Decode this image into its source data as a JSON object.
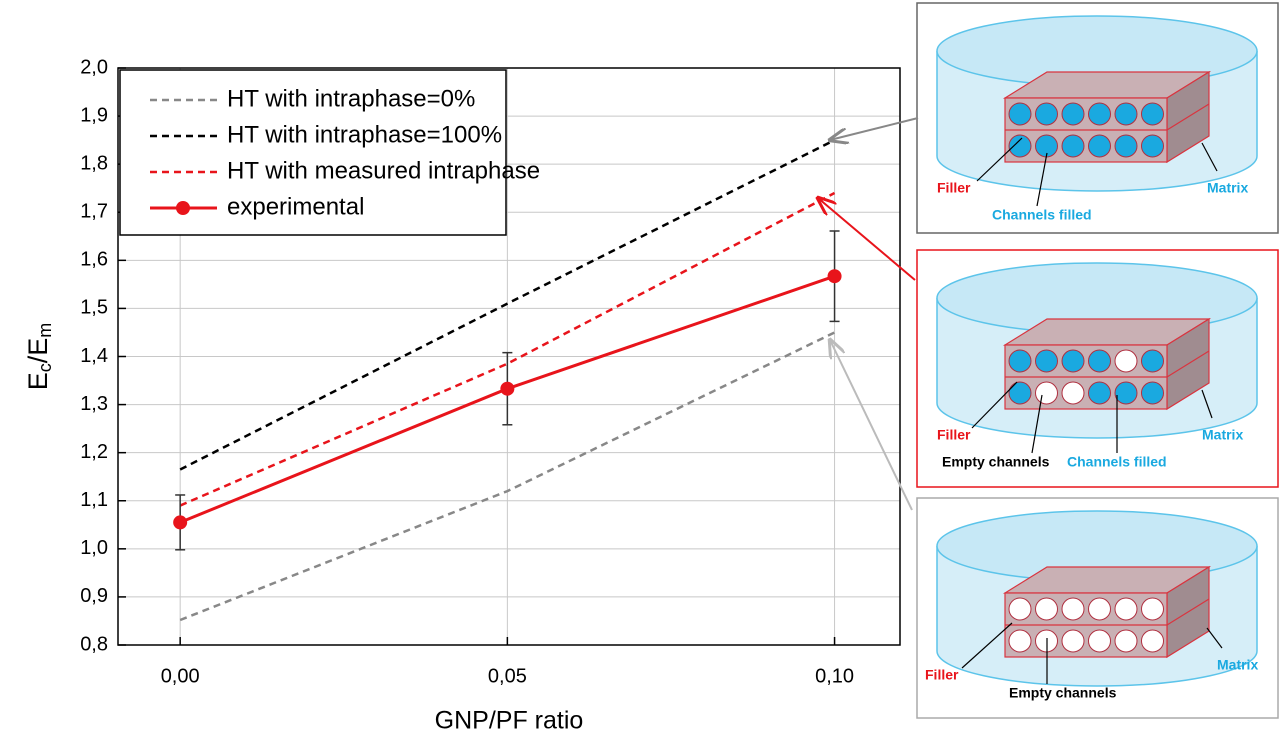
{
  "chart_data": {
    "type": "line",
    "xlabel": "GNP/PF ratio",
    "ylabel": [
      "E",
      "c",
      "/E",
      "m"
    ],
    "x": [
      0,
      0.05,
      0.1
    ],
    "xlim": [
      -0.0095,
      0.11
    ],
    "ylim": [
      0.8,
      2.0
    ],
    "xticks": [
      {
        "value": 0,
        "label": "0,00"
      },
      {
        "value": 0.05,
        "label": "0,05"
      },
      {
        "value": 0.1,
        "label": "0,10"
      }
    ],
    "yticks": [
      {
        "value": 0.8,
        "label": "0,8"
      },
      {
        "value": 0.9,
        "label": "0,9"
      },
      {
        "value": 1.0,
        "label": "1,0"
      },
      {
        "value": 1.1,
        "label": "1,1"
      },
      {
        "value": 1.2,
        "label": "1,2"
      },
      {
        "value": 1.3,
        "label": "1,3"
      },
      {
        "value": 1.4,
        "label": "1,4"
      },
      {
        "value": 1.5,
        "label": "1,5"
      },
      {
        "value": 1.6,
        "label": "1,6"
      },
      {
        "value": 1.7,
        "label": "1,7"
      },
      {
        "value": 1.8,
        "label": "1,8"
      },
      {
        "value": 1.9,
        "label": "1,9"
      },
      {
        "value": 2.0,
        "label": "2,0"
      }
    ],
    "grid": true,
    "legend": "upper left",
    "series": [
      {
        "name": "HT with intraphase=0%",
        "color": "#888888",
        "style": "dashed",
        "values": [
          0.852,
          1.12,
          1.45
        ]
      },
      {
        "name": "HT with intraphase=100%",
        "color": "#000000",
        "style": "dashed",
        "values": [
          1.165,
          1.51,
          1.85
        ]
      },
      {
        "name": "HT with measured intraphase",
        "color": "#e8141b",
        "style": "dashed",
        "values": [
          1.09,
          1.385,
          1.74
        ]
      },
      {
        "name": "experimental",
        "color": "#e8141b",
        "style": "solid",
        "marker": true,
        "values": [
          1.055,
          1.333,
          1.567
        ],
        "errors": [
          0.057,
          0.075,
          0.094
        ]
      }
    ]
  },
  "diagrams": [
    {
      "labels": [
        "Filler",
        "Channels filled",
        "Matrix"
      ]
    },
    {
      "labels": [
        "Filler",
        "Empty channels",
        "Channels filled",
        "Matrix"
      ]
    },
    {
      "labels": [
        "Filler",
        "Empty channels",
        "Matrix"
      ]
    }
  ]
}
